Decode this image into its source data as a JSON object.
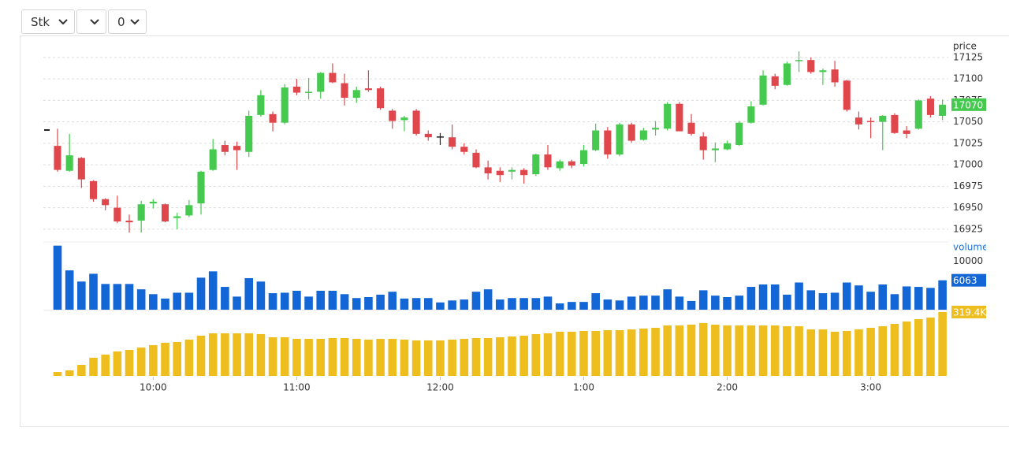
{
  "toolbar": {
    "selects": [
      "Stk",
      "0"
    ]
  },
  "chart_data": [
    {
      "type": "candlestick",
      "axis_label": "price",
      "open": [
        17022,
        16993,
        17008,
        16981,
        16960,
        16950,
        16935,
        16935,
        16955,
        16954,
        16938,
        16941,
        16955,
        16994,
        17023,
        17022,
        17015,
        17058,
        17059,
        17049,
        17091,
        17084,
        17085,
        17107,
        17095,
        17078,
        17089,
        17089,
        17063,
        17052,
        17063,
        17036,
        17033,
        17032,
        17021,
        17014,
        16997,
        16993,
        16992,
        16994,
        16989,
        17012,
        16996,
        17004,
        17001,
        17017,
        17040,
        17012,
        17047,
        17029,
        17041,
        17042,
        17071,
        17049,
        17033,
        17017,
        17018,
        17023,
        17049,
        17070,
        17103,
        17093,
        17121,
        17122,
        17108,
        17111,
        17098,
        17055,
        17051,
        17050,
        17058,
        17040,
        17042,
        17077,
        17057
      ],
      "high": [
        17042,
        17036,
        17009,
        16982,
        16961,
        16964,
        16942,
        16958,
        16960,
        16955,
        16944,
        16959,
        16993,
        17030,
        17028,
        17027,
        17063,
        17087,
        17062,
        17094,
        17100,
        17101,
        17108,
        17118,
        17106,
        17091,
        17110,
        17091,
        17065,
        17057,
        17065,
        17040,
        17037,
        17047,
        17025,
        17018,
        17005,
        16997,
        16997,
        16996,
        17013,
        17023,
        17006,
        17006,
        17023,
        17048,
        17044,
        17049,
        17049,
        17043,
        17051,
        17073,
        17073,
        17059,
        17038,
        17026,
        17028,
        17051,
        17074,
        17110,
        17106,
        17120,
        17132,
        17125,
        17112,
        17121,
        17099,
        17062,
        17055,
        17058,
        17060,
        17045,
        17076,
        17080,
        17076
      ],
      "low": [
        16992,
        16992,
        16973,
        16957,
        16947,
        16932,
        16921,
        16921,
        16949,
        16933,
        16925,
        16939,
        16942,
        16993,
        17011,
        16994,
        17009,
        17056,
        17039,
        17047,
        17081,
        17076,
        17077,
        17095,
        17069,
        17072,
        17085,
        17064,
        17042,
        17039,
        17034,
        17028,
        17023,
        17018,
        17012,
        16996,
        16983,
        16980,
        16983,
        16978,
        16987,
        16994,
        16993,
        16996,
        16998,
        17016,
        17007,
        17010,
        17026,
        17028,
        17034,
        17040,
        17040,
        17034,
        17006,
        17003,
        17017,
        17022,
        17048,
        17069,
        17088,
        17092,
        17108,
        17106,
        17093,
        17091,
        17062,
        17041,
        17031,
        17017,
        17036,
        17031,
        17041,
        17055,
        17052
      ],
      "close": [
        16994,
        17011,
        16983,
        16960,
        16953,
        16934,
        16933,
        16954,
        16957,
        16934,
        16940,
        16953,
        16992,
        17018,
        17015,
        17017,
        17057,
        17081,
        17049,
        17090,
        17084,
        17085,
        17107,
        17096,
        17078,
        17087,
        17087,
        17066,
        17051,
        17055,
        17036,
        17032,
        17033,
        17021,
        17015,
        16997,
        16990,
        16988,
        16994,
        16988,
        17012,
        16997,
        17004,
        16999,
        17017,
        17040,
        17012,
        17047,
        17028,
        17040,
        17043,
        17071,
        17039,
        17036,
        17017,
        17019,
        17025,
        17049,
        17068,
        17104,
        17092,
        17118,
        17122,
        17108,
        17110,
        17096,
        17064,
        17047,
        17050,
        17057,
        17037,
        17036,
        17075,
        17058,
        17070
      ],
      "up_color": "#45c94f",
      "down_color": "#e0474c",
      "flat_color": "#222222",
      "xlim": [
        -0.5,
        74.5
      ],
      "xticks": [
        {
          "value": 8,
          "label": "10:00"
        },
        {
          "value": 20,
          "label": "11:00"
        },
        {
          "value": 32,
          "label": "12:00"
        },
        {
          "value": 44,
          "label": "1:00"
        },
        {
          "value": 56,
          "label": "2:00"
        },
        {
          "value": 68,
          "label": "3:00"
        }
      ],
      "ylim": [
        16912,
        17146
      ],
      "yticks": [
        16925,
        16950,
        16975,
        17000,
        17025,
        17050,
        17075,
        17100,
        17125
      ],
      "grid": true,
      "last_value": 17070
    },
    {
      "type": "bar",
      "axis_label": "volume",
      "color": "#1366d6",
      "values": [
        13200,
        8100,
        5800,
        7400,
        5300,
        5300,
        5300,
        4200,
        3200,
        2300,
        3500,
        3500,
        6600,
        7900,
        4700,
        2700,
        6500,
        5800,
        3400,
        3500,
        3900,
        2700,
        3900,
        3900,
        3200,
        2400,
        2600,
        3100,
        3700,
        2300,
        2400,
        2400,
        1500,
        1900,
        2100,
        3700,
        4200,
        2100,
        2400,
        2400,
        2400,
        2700,
        1300,
        1600,
        1600,
        3400,
        2100,
        1900,
        2700,
        2900,
        2900,
        4200,
        2700,
        1800,
        4000,
        2900,
        2600,
        2900,
        4700,
        5200,
        5200,
        3100,
        5600,
        4000,
        3400,
        3500,
        5600,
        5000,
        3700,
        5200,
        3200,
        4800,
        4700,
        4500,
        6063
      ],
      "ylim": [
        0,
        13800
      ],
      "yticks": [
        10000
      ],
      "last_value": 6063
    },
    {
      "type": "bar",
      "color": "#eebd1e",
      "values": [
        19700,
        27600,
        55200,
        90700,
        106500,
        122200,
        130100,
        142000,
        153800,
        165600,
        169500,
        181400,
        201100,
        212900,
        212900,
        212900,
        212900,
        209000,
        193200,
        193200,
        185300,
        185300,
        185300,
        189300,
        189300,
        185300,
        181400,
        185300,
        185300,
        181400,
        177400,
        177400,
        177400,
        181400,
        185300,
        189300,
        189300,
        193200,
        197200,
        201100,
        209000,
        212900,
        220800,
        220800,
        224800,
        224800,
        228700,
        228700,
        232600,
        236600,
        240500,
        252400,
        252400,
        256300,
        264200,
        256300,
        252400,
        252400,
        252400,
        252400,
        252400,
        248400,
        248400,
        232600,
        232600,
        220800,
        224800,
        232600,
        240500,
        248400,
        260200,
        272100,
        283900,
        291800,
        319400
      ],
      "ylim": [
        0,
        327000
      ],
      "last_value": 319400,
      "last_value_label": "319.4K"
    }
  ]
}
